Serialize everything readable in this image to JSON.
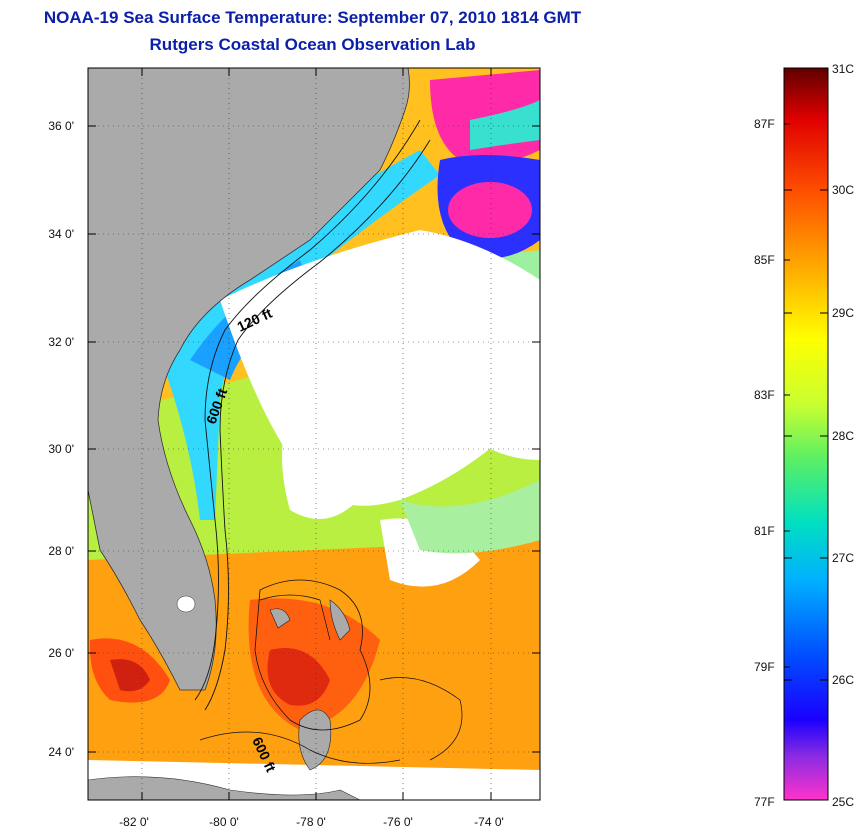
{
  "title": {
    "line1": "NOAA-19 Sea Surface Temperature:  September 07, 2010 1814 GMT",
    "line2": "Rutgers Coastal Ocean Observation Lab"
  },
  "lat_labels": [
    "36 0'",
    "34 0'",
    "32 0'",
    "30 0'",
    "28 0'",
    "26 0'",
    "24 0'"
  ],
  "lon_labels": [
    "-82 0'",
    "-80 0'",
    "-78 0'",
    "-76 0'",
    "-74 0'"
  ],
  "contours": {
    "c1": "120 ft",
    "c2": "600 ft",
    "c3": "600 ft"
  },
  "colorbar": {
    "celsius": [
      "31C",
      "30C",
      "29C",
      "28C",
      "27C",
      "26C",
      "25C"
    ],
    "fahrenheit": [
      "87F",
      "85F",
      "83F",
      "81F",
      "79F",
      "77F"
    ]
  },
  "colors": {
    "title": "#0b1fa8",
    "land": "#aaaaaa",
    "no_data": "#ffffff"
  }
}
